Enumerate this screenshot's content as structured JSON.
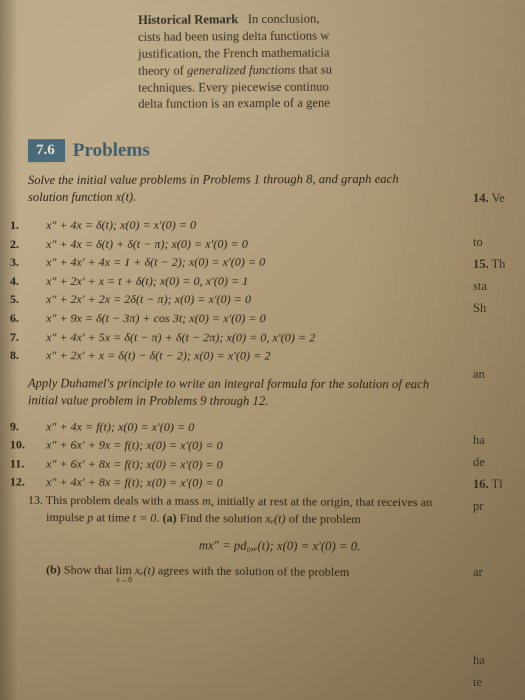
{
  "remark": {
    "title": "Historical Remark",
    "body_l1": "In conclusion,",
    "body_l2": "cists had been using delta functions w",
    "body_l3": "justification, the French mathematicia",
    "body_l4": "theory of ",
    "body_l4_italic": "generalized functions",
    "body_l4_tail": " that su",
    "body_l5": "techniques. Every piecewise continuo",
    "body_l6": "delta function is an example of a gene"
  },
  "section": {
    "number": "7.6",
    "title": "Problems"
  },
  "instr1": "Solve the initial value problems in Problems 1 through 8, and graph each solution function x(t).",
  "probs1": [
    "x″ + 4x = δ(t); x(0) = x′(0) = 0",
    "x″ + 4x = δ(t) + δ(t − π); x(0) = x′(0) = 0",
    "x″ + 4x′ + 4x = 1 + δ(t − 2); x(0) = x′(0) = 0",
    "x″ + 2x′ + x = t + δ(t); x(0) = 0, x′(0) = 1",
    "x″ + 2x′ + 2x = 2δ(t − π); x(0) = x′(0) = 0",
    "x″ + 9x = δ(t − 3π) + cos 3t; x(0) = x′(0) = 0",
    "x″ + 4x′ + 5x = δ(t − π) + δ(t − 2π); x(0) = 0, x′(0) = 2",
    "x″ + 2x′ + x = δ(t) − δ(t − 2); x(0) = x′(0) = 2"
  ],
  "instr2": "Apply Duhamel's principle to write an integral formula for the solution of each initial value problem in Problems 9 through 12.",
  "probs2": [
    "x″ + 4x = f(t); x(0) = x′(0) = 0",
    "x″ + 6x′ + 9x = f(t); x(0) = x′(0) = 0",
    "x″ + 6x′ + 8x = f(t); x(0) = x′(0) = 0",
    "x″ + 4x′ + 8x = f(t); x(0) = x′(0) = 0"
  ],
  "p13": {
    "num": "13.",
    "lead": "This problem deals with a mass ",
    "m": "m",
    "lead2": ", initially at rest at the origin, that receives an impulse ",
    "p": "p",
    "lead3": " at time ",
    "t0": "t = 0",
    "lead4": ". ",
    "a_lbl": "(a)",
    "a_txt": " Find the solution ",
    "xe": "xₑ(t)",
    "a_tail": " of the problem",
    "formula": "mx″ = pd₀,ₑ(t);    x(0) = x′(0) = 0.",
    "b_lbl": "(b)",
    "b_txt": " Show that lim ",
    "b_sub": "ε→0",
    "b_mid": "xₑ(t)",
    "b_tail": " agrees with the solution of the problem"
  },
  "side": [
    {
      "n": "14.",
      "t": "Ve"
    },
    {
      "n": "",
      "t": ""
    },
    {
      "n": "",
      "t": "to"
    },
    {
      "n": "15.",
      "t": "Th"
    },
    {
      "n": "",
      "t": "sta"
    },
    {
      "n": "",
      "t": "Sh"
    },
    {
      "n": "",
      "t": ""
    },
    {
      "n": "",
      "t": ""
    },
    {
      "n": "",
      "t": "an"
    },
    {
      "n": "",
      "t": ""
    },
    {
      "n": "",
      "t": ""
    },
    {
      "n": "",
      "t": "ha"
    },
    {
      "n": "",
      "t": "de"
    },
    {
      "n": "16.",
      "t": "Tl"
    },
    {
      "n": "",
      "t": "pr"
    },
    {
      "n": "",
      "t": ""
    },
    {
      "n": "",
      "t": ""
    },
    {
      "n": "",
      "t": "ar"
    },
    {
      "n": "",
      "t": ""
    },
    {
      "n": "",
      "t": ""
    },
    {
      "n": "",
      "t": ""
    },
    {
      "n": "",
      "t": "ha"
    },
    {
      "n": "",
      "t": "te"
    }
  ],
  "colors": {
    "section_bg": "#4a6b7a",
    "section_fg": "#e8e0cf",
    "title_color": "#3e5e6e"
  }
}
